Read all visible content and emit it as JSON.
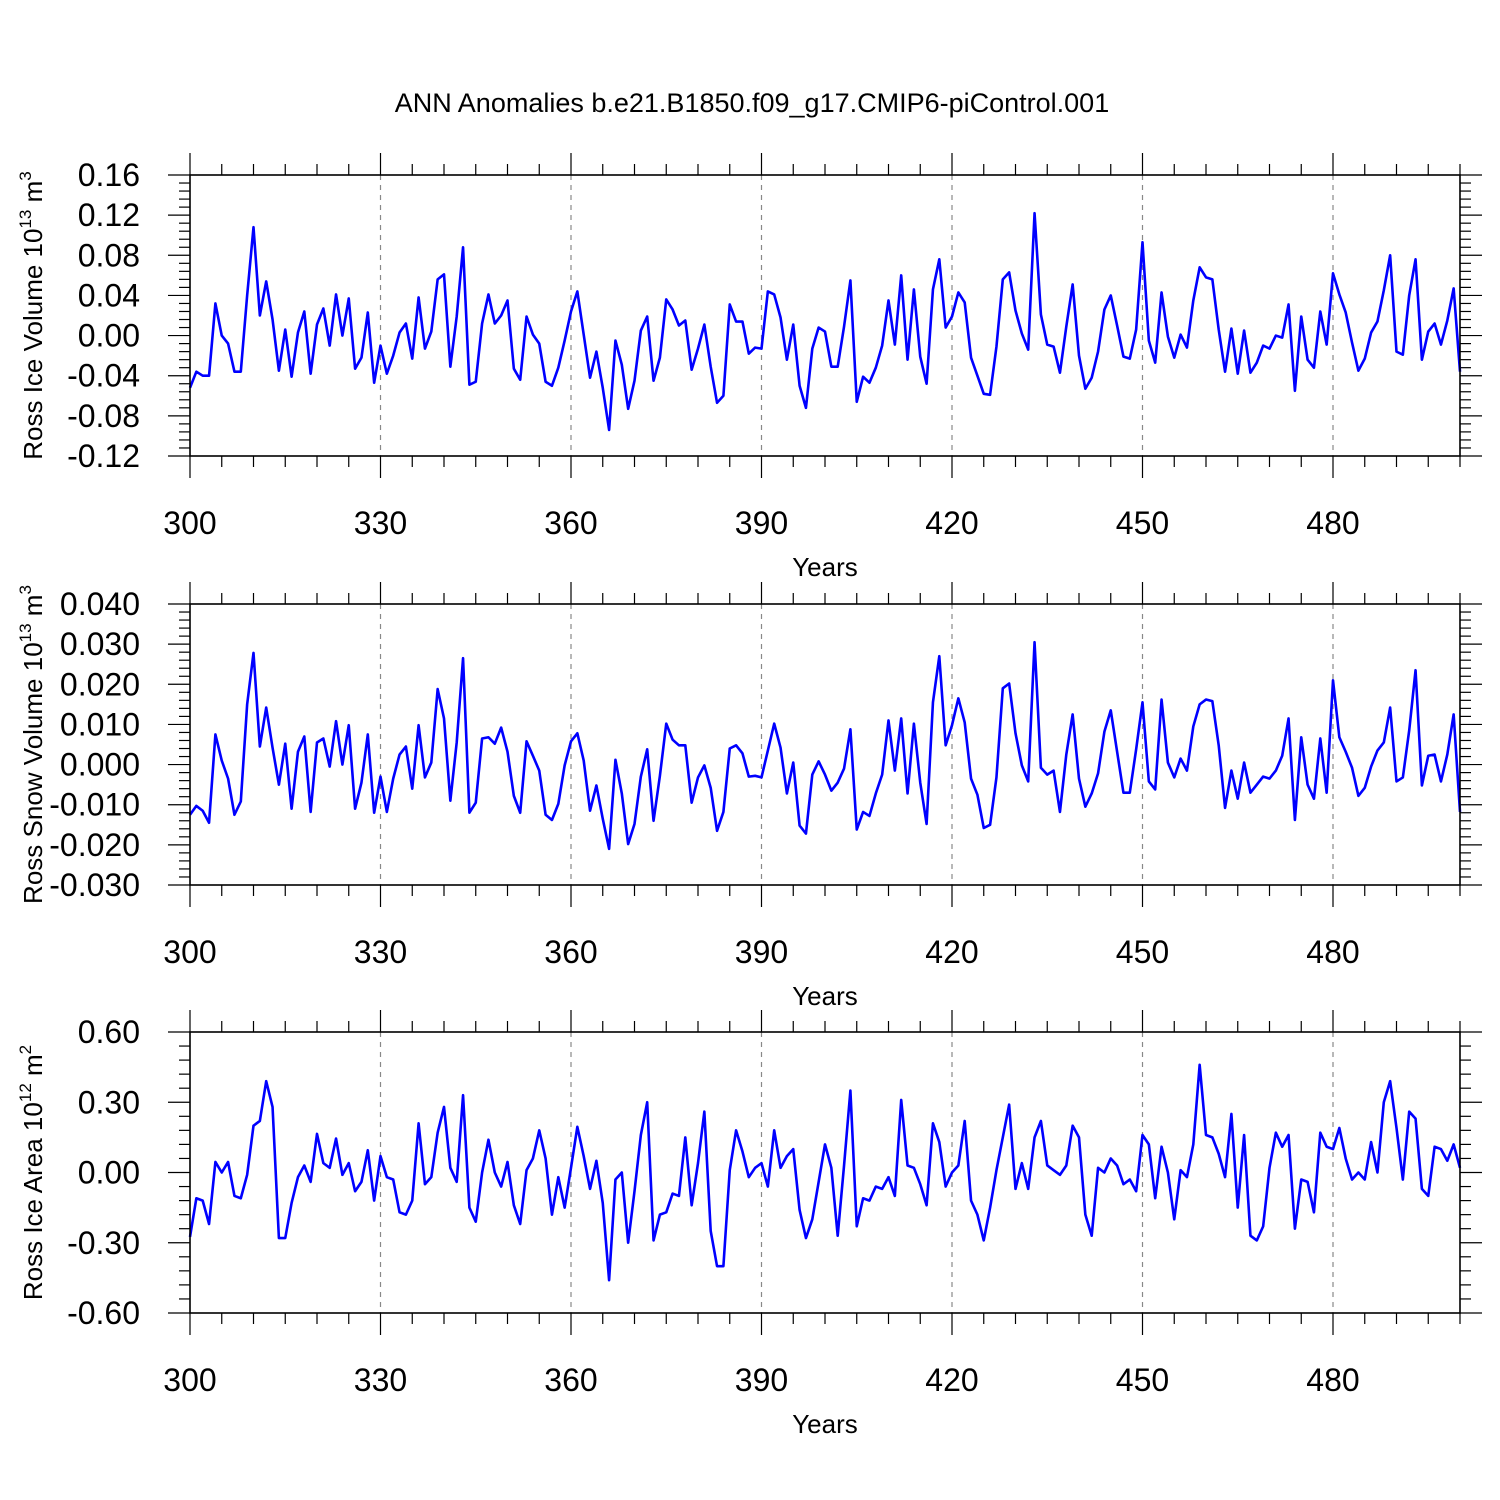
{
  "title": "ANN Anomalies b.e21.B1850.f09_g17.CMIP6-piControl.001",
  "colors": {
    "line": "#0000ff",
    "axis": "#000000",
    "grid": "#888888",
    "background": "#ffffff"
  },
  "chart_data": [
    {
      "type": "line",
      "xlabel": "Years",
      "ylabel": {
        "text": "Ross Ice Volume 10",
        "exponent": "13",
        "unit": " m",
        "unit_exponent": "3"
      },
      "xlim": [
        300,
        500
      ],
      "ylim": [
        -0.12,
        0.16
      ],
      "x_ticks": [
        300,
        330,
        360,
        390,
        420,
        450,
        480
      ],
      "x_tick_labels": [
        "300",
        "330",
        "360",
        "390",
        "420",
        "450",
        "480"
      ],
      "y_ticks": [
        -0.12,
        -0.08,
        -0.04,
        0.0,
        0.04,
        0.08,
        0.12,
        0.16
      ],
      "y_tick_labels": [
        "-0.12",
        "-0.08",
        "-0.04",
        "0.00",
        "0.04",
        "0.08",
        "0.12",
        "0.16"
      ],
      "vertical_grid": "dashed at labeled years",
      "series": [
        {
          "x_start": 300,
          "x_step": 1,
          "values": [
            -0.052,
            -0.036,
            -0.04,
            -0.04,
            0.032,
            0.0,
            -0.008,
            -0.036,
            -0.036,
            0.04,
            0.108,
            0.02,
            0.054,
            0.016,
            -0.035,
            0.006,
            -0.041,
            0.003,
            0.024,
            -0.038,
            0.011,
            0.027,
            -0.01,
            0.041,
            0.0,
            0.037,
            -0.033,
            -0.022,
            0.023,
            -0.047,
            -0.01,
            -0.038,
            -0.02,
            0.003,
            0.012,
            -0.023,
            0.038,
            -0.013,
            0.004,
            0.056,
            0.061,
            -0.031,
            0.019,
            0.088,
            -0.049,
            -0.046,
            0.012,
            0.041,
            0.012,
            0.02,
            0.035,
            -0.033,
            -0.044,
            0.019,
            0.001,
            -0.008,
            -0.046,
            -0.05,
            -0.032,
            -0.005,
            0.024,
            0.044,
            0.001,
            -0.042,
            -0.016,
            -0.052,
            -0.094,
            -0.005,
            -0.029,
            -0.073,
            -0.045,
            0.005,
            0.019,
            -0.045,
            -0.022,
            0.036,
            0.026,
            0.01,
            0.015,
            -0.034,
            -0.013,
            0.011,
            -0.031,
            -0.067,
            -0.06,
            0.031,
            0.014,
            0.014,
            -0.018,
            -0.012,
            -0.013,
            0.044,
            0.041,
            0.018,
            -0.024,
            0.011,
            -0.05,
            -0.072,
            -0.013,
            0.008,
            0.004,
            -0.031,
            -0.031,
            0.009,
            0.055,
            -0.066,
            -0.041,
            -0.047,
            -0.032,
            -0.01,
            0.035,
            -0.009,
            0.06,
            -0.024,
            0.046,
            -0.021,
            -0.048,
            0.046,
            0.076,
            0.008,
            0.019,
            0.043,
            0.033,
            -0.022,
            -0.04,
            -0.058,
            -0.059,
            -0.011,
            0.056,
            0.063,
            0.025,
            0.002,
            -0.014,
            0.122,
            0.021,
            -0.009,
            -0.011,
            -0.037,
            0.009,
            0.051,
            -0.02,
            -0.053,
            -0.042,
            -0.016,
            0.026,
            0.04,
            0.01,
            -0.021,
            -0.023,
            0.006,
            0.093,
            -0.005,
            -0.027,
            0.043,
            -0.001,
            -0.022,
            0.001,
            -0.012,
            0.035,
            0.068,
            0.058,
            0.056,
            0.006,
            -0.036,
            0.007,
            -0.038,
            0.005,
            -0.037,
            -0.027,
            -0.01,
            -0.013,
            0.0,
            -0.002,
            0.031,
            -0.055,
            0.019,
            -0.024,
            -0.032,
            0.024,
            -0.009,
            0.062,
            0.041,
            0.023,
            -0.007,
            -0.035,
            -0.023,
            0.003,
            0.014,
            0.045,
            0.08,
            -0.016,
            -0.019,
            0.04,
            0.076,
            -0.024,
            0.004,
            0.012,
            -0.009,
            0.015,
            0.047,
            -0.036
          ]
        }
      ]
    },
    {
      "type": "line",
      "xlabel": "Years",
      "ylabel": {
        "text": "Ross Snow Volume 10",
        "exponent": "13",
        "unit": " m",
        "unit_exponent": "3"
      },
      "xlim": [
        300,
        500
      ],
      "ylim": [
        -0.03,
        0.04
      ],
      "x_ticks": [
        300,
        330,
        360,
        390,
        420,
        450,
        480
      ],
      "x_tick_labels": [
        "300",
        "330",
        "360",
        "390",
        "420",
        "450",
        "480"
      ],
      "y_ticks": [
        -0.03,
        -0.02,
        -0.01,
        0.0,
        0.01,
        0.02,
        0.03,
        0.04
      ],
      "y_tick_labels": [
        "-0.030",
        "-0.020",
        "-0.010",
        "0.000",
        "0.010",
        "0.020",
        "0.030",
        "0.040"
      ],
      "vertical_grid": "dashed at labeled years",
      "series": [
        {
          "x_start": 300,
          "x_step": 1,
          "values": [
            -0.0125,
            -0.0103,
            -0.0115,
            -0.0145,
            0.0075,
            0.001,
            -0.0035,
            -0.0125,
            -0.0092,
            0.015,
            0.0278,
            0.0045,
            0.0142,
            0.0042,
            -0.005,
            0.0052,
            -0.011,
            0.0032,
            0.007,
            -0.0118,
            0.0055,
            0.0065,
            -0.0005,
            0.0108,
            0.0,
            0.0098,
            -0.011,
            -0.0045,
            0.0075,
            -0.012,
            -0.003,
            -0.0118,
            -0.0035,
            0.0025,
            0.0045,
            -0.006,
            0.0098,
            -0.0032,
            0.0005,
            0.0188,
            0.0115,
            -0.009,
            0.0055,
            0.0265,
            -0.012,
            -0.0095,
            0.0065,
            0.0068,
            0.0052,
            0.0092,
            0.0032,
            -0.0078,
            -0.012,
            0.0058,
            0.0022,
            -0.0015,
            -0.0125,
            -0.0138,
            -0.0098,
            -0.0002,
            0.0058,
            0.0078,
            0.001,
            -0.0115,
            -0.0052,
            -0.0135,
            -0.021,
            0.0012,
            -0.0072,
            -0.0198,
            -0.0148,
            -0.003,
            0.0038,
            -0.014,
            -0.0028,
            0.0102,
            0.0062,
            0.0048,
            0.0048,
            -0.0095,
            -0.0032,
            -0.0002,
            -0.0058,
            -0.0165,
            -0.0118,
            0.004,
            0.0048,
            0.0028,
            -0.003,
            -0.0028,
            -0.0032,
            0.0035,
            0.0102,
            0.0042,
            -0.0072,
            0.0005,
            -0.0152,
            -0.0172,
            -0.0025,
            0.0008,
            -0.0025,
            -0.0065,
            -0.0045,
            -0.001,
            0.0088,
            -0.0162,
            -0.0118,
            -0.0128,
            -0.0072,
            -0.0025,
            0.011,
            -0.0015,
            0.0115,
            -0.0072,
            0.0102,
            -0.0045,
            -0.0148,
            0.0155,
            0.027,
            0.0048,
            0.0098,
            0.0165,
            0.0105,
            -0.0035,
            -0.0075,
            -0.0158,
            -0.015,
            -0.0032,
            0.019,
            0.0202,
            0.0078,
            -0.0002,
            -0.0042,
            0.0305,
            -0.0008,
            -0.0025,
            -0.0015,
            -0.0118,
            0.0025,
            0.0125,
            -0.0035,
            -0.0105,
            -0.0072,
            -0.0022,
            0.0082,
            0.0135,
            0.0032,
            -0.007,
            -0.007,
            0.0038,
            0.0155,
            -0.0042,
            -0.0062,
            0.0162,
            0.0005,
            -0.0032,
            0.0015,
            -0.0015,
            0.0095,
            0.015,
            0.0162,
            0.0158,
            0.0048,
            -0.0108,
            -0.0015,
            -0.0085,
            0.0005,
            -0.007,
            -0.005,
            -0.003,
            -0.0035,
            -0.0015,
            0.0022,
            0.0115,
            -0.0138,
            0.0068,
            -0.005,
            -0.0085,
            0.0065,
            -0.007,
            0.021,
            0.0068,
            0.0032,
            -0.0008,
            -0.0078,
            -0.0058,
            -0.0005,
            0.0035,
            0.0055,
            0.0142,
            -0.0042,
            -0.0032,
            0.0085,
            0.0235,
            -0.0052,
            0.0022,
            0.0025,
            -0.0042,
            0.0025,
            0.0125,
            -0.0118
          ]
        }
      ]
    },
    {
      "type": "line",
      "xlabel": "Years",
      "ylabel": {
        "text": "Ross Ice Area 10",
        "exponent": "12",
        "unit": " m",
        "unit_exponent": "2"
      },
      "xlim": [
        300,
        500
      ],
      "ylim": [
        -0.6,
        0.6
      ],
      "x_ticks": [
        300,
        330,
        360,
        390,
        420,
        450,
        480
      ],
      "x_tick_labels": [
        "300",
        "330",
        "360",
        "390",
        "420",
        "450",
        "480"
      ],
      "y_ticks": [
        -0.6,
        -0.3,
        0.0,
        0.3,
        0.6
      ],
      "y_tick_labels": [
        "-0.60",
        "-0.30",
        "0.00",
        "0.30",
        "0.60"
      ],
      "vertical_grid": "dashed at labeled years",
      "series": [
        {
          "x_start": 300,
          "x_step": 1,
          "values": [
            -0.275,
            -0.11,
            -0.12,
            -0.22,
            0.045,
            0.0,
            0.045,
            -0.1,
            -0.11,
            -0.01,
            0.2,
            0.22,
            0.39,
            0.28,
            -0.28,
            -0.28,
            -0.13,
            -0.02,
            0.03,
            -0.04,
            0.165,
            0.04,
            0.02,
            0.145,
            -0.01,
            0.04,
            -0.08,
            -0.04,
            0.095,
            -0.12,
            0.07,
            -0.02,
            -0.03,
            -0.17,
            -0.18,
            -0.12,
            0.21,
            -0.05,
            -0.02,
            0.17,
            0.28,
            0.02,
            -0.04,
            0.33,
            -0.15,
            -0.21,
            0.0,
            0.14,
            0.0,
            -0.06,
            0.045,
            -0.14,
            -0.22,
            0.01,
            0.06,
            0.18,
            0.06,
            -0.18,
            -0.02,
            -0.15,
            0.02,
            0.195,
            0.07,
            -0.07,
            0.05,
            -0.13,
            -0.46,
            -0.03,
            0.0,
            -0.3,
            -0.08,
            0.16,
            0.3,
            -0.29,
            -0.18,
            -0.17,
            -0.09,
            -0.1,
            0.15,
            -0.14,
            0.04,
            0.26,
            -0.25,
            -0.4,
            -0.4,
            0.01,
            0.18,
            0.09,
            -0.02,
            0.02,
            0.04,
            -0.06,
            0.18,
            0.02,
            0.07,
            0.1,
            -0.16,
            -0.28,
            -0.2,
            -0.04,
            0.12,
            0.02,
            -0.27,
            0.03,
            0.35,
            -0.23,
            -0.11,
            -0.12,
            -0.06,
            -0.07,
            -0.02,
            -0.1,
            0.31,
            0.03,
            0.02,
            -0.05,
            -0.14,
            0.21,
            0.13,
            -0.06,
            0.0,
            0.03,
            0.22,
            -0.12,
            -0.18,
            -0.29,
            -0.15,
            0.01,
            0.15,
            0.29,
            -0.07,
            0.04,
            -0.07,
            0.15,
            0.22,
            0.03,
            0.01,
            -0.01,
            0.03,
            0.2,
            0.15,
            -0.18,
            -0.27,
            0.02,
            0.0,
            0.06,
            0.03,
            -0.05,
            -0.03,
            -0.08,
            0.16,
            0.12,
            -0.11,
            0.11,
            0.0,
            -0.2,
            0.01,
            -0.02,
            0.12,
            0.46,
            0.16,
            0.15,
            0.08,
            -0.02,
            0.25,
            -0.15,
            0.16,
            -0.27,
            -0.29,
            -0.23,
            0.02,
            0.17,
            0.11,
            0.16,
            -0.24,
            -0.03,
            -0.04,
            -0.17,
            0.17,
            0.11,
            0.1,
            0.19,
            0.06,
            -0.03,
            0.0,
            -0.03,
            0.13,
            0.0,
            0.3,
            0.39,
            0.19,
            -0.03,
            0.26,
            0.23,
            -0.07,
            -0.1,
            0.11,
            0.1,
            0.05,
            0.12,
            0.02
          ]
        }
      ]
    }
  ]
}
